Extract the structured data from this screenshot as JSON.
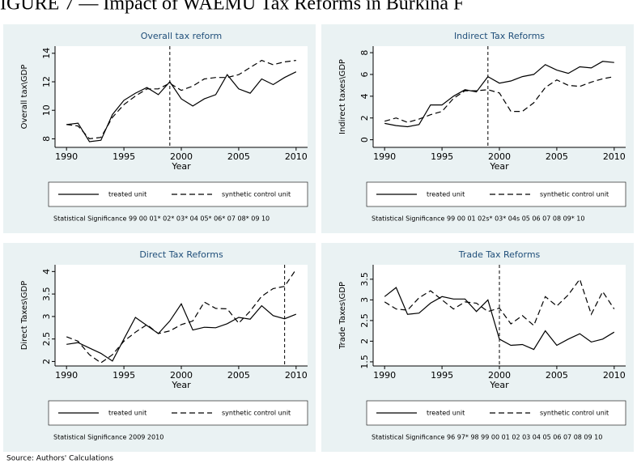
{
  "header": "IGURE 7 — Impact of WAEMU Tax Reforms in Burkina F",
  "source": "Source: Authors' Calculations",
  "chart_data": [
    {
      "type": "line",
      "title": "Overall tax reform",
      "xlabel": "Year",
      "ylabel": "Overall tax\\GDP",
      "x": [
        1990,
        1991,
        1992,
        1993,
        1994,
        1995,
        1996,
        1997,
        1998,
        1999,
        2000,
        2001,
        2002,
        2003,
        2004,
        2005,
        2006,
        2007,
        2008,
        2009,
        2010
      ],
      "xlim": [
        1989,
        2011
      ],
      "xticks": [
        1990,
        1995,
        2000,
        2005,
        2010
      ],
      "ylim": [
        7.4,
        14.5
      ],
      "yticks": [
        8,
        10,
        12,
        14
      ],
      "vline": 1999,
      "series": [
        {
          "name": "treated unit",
          "color": "#000000",
          "dash": false,
          "values": [
            9.0,
            9.1,
            7.8,
            7.9,
            9.7,
            10.7,
            11.2,
            11.6,
            11.1,
            12.0,
            10.8,
            10.3,
            10.8,
            11.1,
            12.5,
            11.5,
            11.2,
            12.2,
            11.8,
            12.3,
            12.7
          ]
        },
        {
          "name": "synthetic control unit",
          "color": "#000000",
          "dash": true,
          "values": [
            9.0,
            8.9,
            8.0,
            8.1,
            9.5,
            10.4,
            11.0,
            11.5,
            11.5,
            11.9,
            11.4,
            11.7,
            12.2,
            12.3,
            12.3,
            12.5,
            13.0,
            13.5,
            13.2,
            13.4,
            13.5
          ]
        }
      ],
      "note": "Statistical Significance 99 00 01* 02* 03* 04 05* 06* 07 08* 09 10"
    },
    {
      "type": "line",
      "title": "Indirect Tax Reforms",
      "xlabel": "Year",
      "ylabel": "Indirect taxes\\GDP",
      "x": [
        1990,
        1991,
        1992,
        1993,
        1994,
        1995,
        1996,
        1997,
        1998,
        1999,
        2000,
        2001,
        2002,
        2003,
        2004,
        2005,
        2006,
        2007,
        2008,
        2009,
        2010
      ],
      "xlim": [
        1989,
        2011
      ],
      "xticks": [
        1990,
        1995,
        2000,
        2005,
        2010
      ],
      "ylim": [
        -0.7,
        8.6
      ],
      "yticks": [
        0,
        2,
        4,
        6,
        8
      ],
      "vline": 1999,
      "series": [
        {
          "name": "treated unit",
          "color": "#000000",
          "dash": false,
          "values": [
            1.5,
            1.3,
            1.2,
            1.4,
            3.2,
            3.2,
            4.0,
            4.6,
            4.4,
            5.8,
            5.2,
            5.4,
            5.8,
            6.0,
            6.9,
            6.4,
            6.1,
            6.7,
            6.6,
            7.2,
            7.1
          ]
        },
        {
          "name": "synthetic control unit",
          "color": "#000000",
          "dash": true,
          "values": [
            1.7,
            2.0,
            1.6,
            1.9,
            2.3,
            2.6,
            3.8,
            4.5,
            4.5,
            4.6,
            4.3,
            2.6,
            2.6,
            3.4,
            4.8,
            5.5,
            5.0,
            4.9,
            5.3,
            5.6,
            5.8
          ]
        }
      ],
      "note": "Statistical Significance 99 00 01 02s* 03* 04s 05 06 07 08 09* 10"
    },
    {
      "type": "line",
      "title": "Direct Tax Reforms",
      "xlabel": "Year",
      "ylabel": "Direct Taxes\\GDP",
      "x": [
        1990,
        1991,
        1992,
        1993,
        1994,
        1995,
        1996,
        1997,
        1998,
        1999,
        2000,
        2001,
        2002,
        2003,
        2004,
        2005,
        2006,
        2007,
        2008,
        2009,
        2010
      ],
      "xlim": [
        1989,
        2011
      ],
      "xticks": [
        1990,
        1995,
        2000,
        2005,
        2010
      ],
      "ylim": [
        1.9,
        4.15
      ],
      "yticks": [
        2,
        2.5,
        3,
        3.5,
        4
      ],
      "vline": 2009,
      "series": [
        {
          "name": "treated unit",
          "color": "#000000",
          "dash": false,
          "values": [
            2.38,
            2.42,
            2.3,
            2.18,
            2.01,
            2.5,
            2.98,
            2.8,
            2.62,
            2.9,
            3.28,
            2.7,
            2.76,
            2.75,
            2.84,
            2.98,
            2.94,
            3.24,
            3.02,
            2.95,
            3.05
          ]
        },
        {
          "name": "synthetic control unit",
          "color": "#000000",
          "dash": true,
          "values": [
            2.55,
            2.45,
            2.15,
            1.97,
            2.15,
            2.45,
            2.65,
            2.82,
            2.62,
            2.68,
            2.82,
            2.9,
            3.32,
            3.18,
            3.17,
            2.85,
            3.12,
            3.45,
            3.62,
            3.67,
            4.05
          ]
        }
      ],
      "note": "Statistical Significance 2009 2010"
    },
    {
      "type": "line",
      "title": "Trade Tax Reforms",
      "xlabel": "Year",
      "ylabel": "Trade Taxes\\GDP",
      "x": [
        1990,
        1991,
        1992,
        1993,
        1994,
        1995,
        1996,
        1997,
        1998,
        1999,
        2000,
        2001,
        2002,
        2003,
        2004,
        2005,
        2006,
        2007,
        2008,
        2009,
        2010
      ],
      "xlim": [
        1989,
        2011
      ],
      "xticks": [
        1990,
        1995,
        2000,
        2005,
        2010
      ],
      "ylim": [
        1.4,
        3.85
      ],
      "yticks": [
        1.5,
        2,
        2.5,
        3,
        3.5
      ],
      "vline": 2000,
      "series": [
        {
          "name": "treated unit",
          "color": "#000000",
          "dash": false,
          "values": [
            3.08,
            3.3,
            2.65,
            2.68,
            2.92,
            3.08,
            3.02,
            3.02,
            2.72,
            3.0,
            2.05,
            1.9,
            1.92,
            1.8,
            2.25,
            1.9,
            2.05,
            2.18,
            1.98,
            2.05,
            2.22
          ]
        },
        {
          "name": "synthetic control unit",
          "color": "#000000",
          "dash": true,
          "values": [
            2.95,
            2.78,
            2.75,
            3.05,
            3.22,
            3.0,
            2.78,
            2.95,
            2.92,
            2.72,
            2.8,
            2.42,
            2.62,
            2.38,
            3.08,
            2.85,
            3.12,
            3.5,
            2.65,
            3.2,
            2.78
          ]
        }
      ],
      "note": "Statistical Significance 96 97* 98 99 00 01 02 03 04 05 06 07 08 09 10"
    }
  ]
}
